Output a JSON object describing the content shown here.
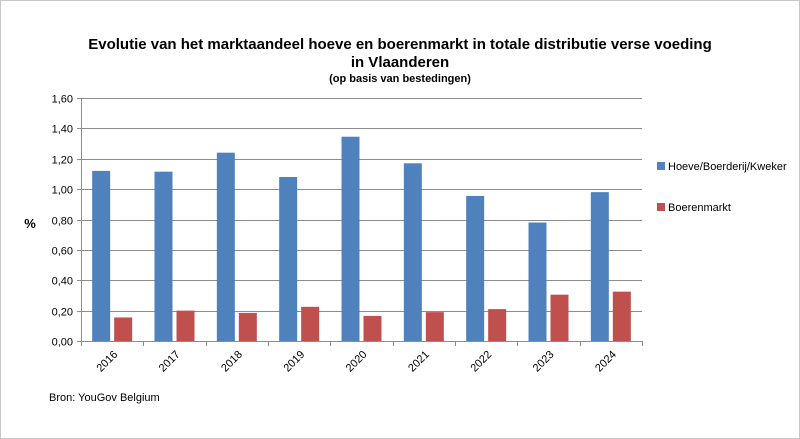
{
  "chart_data": {
    "type": "bar",
    "title_line1": "Evolutie van het marktaandeel hoeve en boerenmarkt in totale distributie verse voeding",
    "title_line2": "in Vlaanderen",
    "subtitle": "(op basis van bestedingen)",
    "ylabel": "%",
    "xlabel": "",
    "categories": [
      "2016",
      "2017",
      "2018",
      "2019",
      "2020",
      "2021",
      "2022",
      "2023",
      "2024"
    ],
    "series": [
      {
        "name": "Hoeve/Boerderij/Kweker",
        "color": "#4f81bd",
        "values": [
          1.12,
          1.115,
          1.24,
          1.08,
          1.345,
          1.17,
          0.955,
          0.78,
          0.98
        ]
      },
      {
        "name": "Boerenmarkt",
        "color": "#c0504d",
        "values": [
          0.155,
          0.2,
          0.185,
          0.225,
          0.165,
          0.19,
          0.21,
          0.305,
          0.325
        ]
      }
    ],
    "ylim": [
      0,
      1.6
    ],
    "yticks": [
      0,
      0.2,
      0.4,
      0.6,
      0.8,
      1.0,
      1.2,
      1.4,
      1.6
    ],
    "ytick_labels": [
      "0,00",
      "0,20",
      "0,40",
      "0,60",
      "0,80",
      "1,00",
      "1,20",
      "1,40",
      "1,60"
    ],
    "grid": true,
    "legend_position": "right"
  },
  "source": "Bron: YouGov Belgium"
}
